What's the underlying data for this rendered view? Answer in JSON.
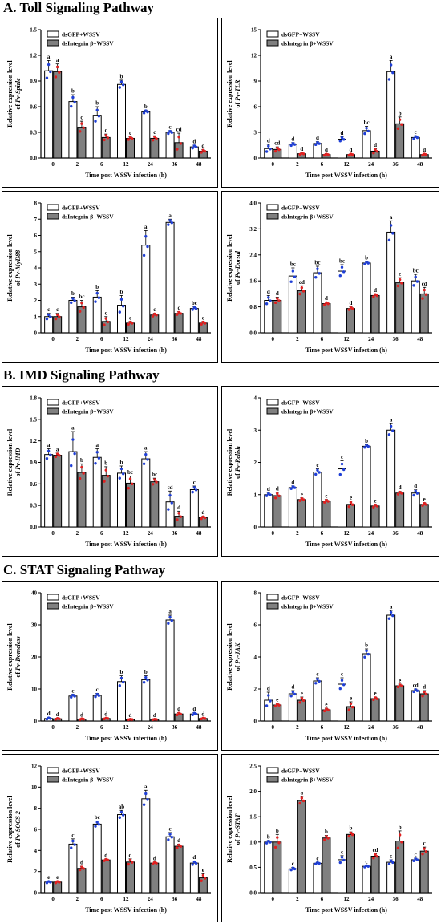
{
  "sections": [
    {
      "title": "A. Toll Signaling Pathway"
    },
    {
      "title": "B. IMD Signaling Pathway"
    },
    {
      "title": "C. STAT Signaling Pathway"
    }
  ],
  "colors": {
    "gfp_bar": "#ffffff",
    "integrin_bar": "#808080",
    "gfp_dot": "#1f3fd6",
    "integrin_dot": "#e02020"
  },
  "chart_data": [
    {
      "type": "bar",
      "panel": "Spizle",
      "ylabel_top": "Relative expression level",
      "ylabel_bottom_prefix": "of ",
      "ylabel_gene": "Pv-Spizle",
      "xlabel": "Time post WSSV infection (h)",
      "categories": [
        "0",
        "2",
        "6",
        "12",
        "24",
        "36",
        "48"
      ],
      "ylim": [
        0,
        1.5
      ],
      "yticks": [
        "0.0",
        "0.3",
        "0.6",
        "0.9",
        "1.2",
        "1.5"
      ],
      "legend_position": "top-left",
      "series": [
        {
          "name": "dsGFP+WSSV",
          "values": [
            1.02,
            0.66,
            0.5,
            0.86,
            0.54,
            0.3,
            0.13
          ],
          "errors": [
            0.12,
            0.08,
            0.1,
            0.05,
            0.02,
            0.02,
            0.02
          ],
          "letters": [
            "a",
            "b",
            "b",
            "b",
            "b",
            "c",
            "d"
          ]
        },
        {
          "name": "dsIntegrin β+WSSV",
          "values": [
            1.01,
            0.36,
            0.24,
            0.23,
            0.23,
            0.18,
            0.08
          ],
          "errors": [
            0.09,
            0.07,
            0.04,
            0.02,
            0.03,
            0.11,
            0.02
          ],
          "letters": [
            "a",
            "c",
            "c",
            "c",
            "c",
            "cd",
            "d"
          ]
        }
      ]
    },
    {
      "type": "bar",
      "panel": "TLR",
      "ylabel_top": "Relative expression level",
      "ylabel_bottom_prefix": "of ",
      "ylabel_gene": "Pv-TLR",
      "xlabel": "Time post WSSV infection (h)",
      "categories": [
        "0",
        "2",
        "6",
        "12",
        "24",
        "36",
        "48"
      ],
      "ylim": [
        0,
        15
      ],
      "yticks": [
        "0",
        "3",
        "6",
        "9",
        "12",
        "15"
      ],
      "legend_position": "top-left",
      "series": [
        {
          "name": "dsGFP+WSSV",
          "values": [
            1.1,
            1.6,
            1.7,
            2.2,
            3.2,
            10.1,
            2.4
          ],
          "errors": [
            0.5,
            0.2,
            0.2,
            0.3,
            0.5,
            1.3,
            0.2
          ],
          "letters": [
            "d",
            "d",
            "d",
            "d",
            "bc",
            "a",
            "c"
          ]
        },
        {
          "name": "dsIntegrin β+WSSV",
          "values": [
            1.0,
            0.5,
            0.4,
            0.4,
            0.8,
            4.0,
            0.4
          ],
          "errors": [
            0.3,
            0.1,
            0.1,
            0.1,
            0.3,
            0.8,
            0.1
          ],
          "letters": [
            "cd",
            "d",
            "d",
            "d",
            "d",
            "b",
            "d"
          ]
        }
      ]
    },
    {
      "type": "bar",
      "panel": "MyD88",
      "ylabel_top": "Relative expression level",
      "ylabel_bottom_prefix": "of ",
      "ylabel_gene": "Pv-MyD88",
      "xlabel": "Time post WSSV infection (h)",
      "categories": [
        "0",
        "2",
        "6",
        "12",
        "24",
        "36",
        "48"
      ],
      "ylim": [
        0,
        8
      ],
      "yticks": [
        "0",
        "1",
        "2",
        "3",
        "4",
        "5",
        "6",
        "7",
        "8"
      ],
      "legend_position": "top-left",
      "series": [
        {
          "name": "dsGFP+WSSV",
          "values": [
            1.0,
            2.0,
            2.2,
            1.7,
            5.4,
            6.8,
            1.5
          ],
          "errors": [
            0.2,
            0.2,
            0.4,
            0.6,
            0.9,
            0.2,
            0.1
          ],
          "letters": [
            "c",
            "b",
            "b",
            "b",
            "a",
            "a",
            "bc"
          ]
        },
        {
          "name": "dsIntegrin β+WSSV",
          "values": [
            1.0,
            1.6,
            0.7,
            0.6,
            1.1,
            1.2,
            0.6
          ],
          "errors": [
            0.2,
            0.4,
            0.3,
            0.1,
            0.1,
            0.1,
            0.1
          ],
          "letters": [
            "c",
            "bc",
            "c",
            "c",
            "c",
            "c",
            "c"
          ]
        }
      ]
    },
    {
      "type": "bar",
      "panel": "Dorsal",
      "ylabel_top": "Relative expression level",
      "ylabel_bottom_prefix": "of ",
      "ylabel_gene": "Pv-Dorsal",
      "xlabel": "Time post WSSV infection (h)",
      "categories": [
        "0",
        "2",
        "6",
        "12",
        "24",
        "36",
        "48"
      ],
      "ylim": [
        0,
        4.0
      ],
      "yticks": [
        "0.0",
        "0.8",
        "1.6",
        "2.4",
        "3.2",
        "4.0"
      ],
      "legend_position": "top-left",
      "series": [
        {
          "name": "dsGFP+WSSV",
          "values": [
            1.0,
            1.75,
            1.85,
            1.9,
            2.15,
            3.1,
            1.6
          ],
          "errors": [
            0.15,
            0.25,
            0.2,
            0.2,
            0.05,
            0.35,
            0.2
          ],
          "letters": [
            "d",
            "bc",
            "bc",
            "bc",
            "b",
            "a",
            "bc"
          ]
        },
        {
          "name": "dsIntegrin β+WSSV",
          "values": [
            1.0,
            1.3,
            0.9,
            0.75,
            1.15,
            1.55,
            1.2
          ],
          "errors": [
            0.1,
            0.15,
            0.05,
            0.05,
            0.05,
            0.15,
            0.2
          ],
          "letters": [
            "d",
            "cd",
            "d",
            "d",
            "d",
            "c",
            "cd"
          ]
        }
      ]
    },
    {
      "type": "bar",
      "panel": "IMD",
      "ylabel_top": "Relative expression level",
      "ylabel_bottom_prefix": "of ",
      "ylabel_gene": "Pv-IMD",
      "xlabel": "Time post WSSV infection (h)",
      "categories": [
        "0",
        "2",
        "6",
        "12",
        "24",
        "36",
        "48"
      ],
      "ylim": [
        0,
        1.8
      ],
      "yticks": [
        "0.0",
        "0.3",
        "0.6",
        "0.9",
        "1.2",
        "1.5",
        "1.8"
      ],
      "legend_position": "top-left",
      "series": [
        {
          "name": "dsGFP+WSSV",
          "values": [
            1.01,
            1.05,
            0.97,
            0.75,
            0.95,
            0.35,
            0.52
          ],
          "errors": [
            0.08,
            0.28,
            0.12,
            0.1,
            0.1,
            0.15,
            0.05
          ],
          "letters": [
            "a",
            "a",
            "a",
            "b",
            "a",
            "cd",
            "c"
          ]
        },
        {
          "name": "dsIntegrin β+WSSV",
          "values": [
            1.0,
            0.76,
            0.72,
            0.61,
            0.63,
            0.15,
            0.13
          ],
          "errors": [
            0.03,
            0.12,
            0.12,
            0.1,
            0.05,
            0.07,
            0.02
          ],
          "letters": [
            "a",
            "b",
            "b",
            "bc",
            "bc",
            "d",
            "d"
          ]
        }
      ]
    },
    {
      "type": "bar",
      "panel": "Relish",
      "ylabel_top": "Relative expression level",
      "ylabel_bottom_prefix": "of ",
      "ylabel_gene": "Pv-Relish",
      "xlabel": "Time post WSSV infection (h)",
      "categories": [
        "0",
        "2",
        "6",
        "12",
        "24",
        "36",
        "48"
      ],
      "ylim": [
        0,
        4
      ],
      "yticks": [
        "0",
        "1",
        "2",
        "3",
        "4"
      ],
      "legend_position": "top-left",
      "series": [
        {
          "name": "dsGFP+WSSV",
          "values": [
            1.0,
            1.22,
            1.7,
            1.8,
            2.5,
            3.0,
            1.05
          ],
          "errors": [
            0.05,
            0.05,
            0.1,
            0.25,
            0.05,
            0.2,
            0.1
          ],
          "letters": [
            "d",
            "d",
            "c",
            "c",
            "b",
            "a",
            "d"
          ]
        },
        {
          "name": "dsIntegrin β+WSSV",
          "values": [
            0.97,
            0.85,
            0.8,
            0.7,
            0.65,
            1.05,
            0.7
          ],
          "errors": [
            0.1,
            0.05,
            0.05,
            0.1,
            0.05,
            0.05,
            0.05
          ],
          "letters": [
            "d",
            "e",
            "e",
            "e",
            "e",
            "d",
            "e"
          ]
        }
      ]
    },
    {
      "type": "bar",
      "panel": "Domeless",
      "ylabel_top": "Relative expression level",
      "ylabel_bottom_prefix": "of ",
      "ylabel_gene": "Pv-Domeless",
      "xlabel": "Time post WSSV infection (h)",
      "categories": [
        "0",
        "2",
        "6",
        "12",
        "24",
        "36",
        "48"
      ],
      "ylim": [
        0,
        40
      ],
      "yticks": [
        "0",
        "10",
        "20",
        "30",
        "40"
      ],
      "legend_position": "top-left",
      "series": [
        {
          "name": "dsGFP+WSSV",
          "values": [
            0.8,
            7.8,
            8.0,
            12.3,
            12.9,
            31.5,
            2.2
          ],
          "errors": [
            0.3,
            0.5,
            0.6,
            1.8,
            1.2,
            1.5,
            0.4
          ],
          "letters": [
            "d",
            "c",
            "c",
            "b",
            "b",
            "a",
            "d"
          ]
        },
        {
          "name": "dsIntegrin β+WSSV",
          "values": [
            0.7,
            0.6,
            0.8,
            0.5,
            0.5,
            2.2,
            0.8
          ],
          "errors": [
            0.2,
            0.2,
            0.2,
            0.1,
            0.1,
            0.4,
            0.2
          ],
          "letters": [
            "d",
            "d",
            "d",
            "d",
            "d",
            "d",
            "d"
          ]
        }
      ]
    },
    {
      "type": "bar",
      "panel": "JAK",
      "ylabel_top": "Relative expression level",
      "ylabel_bottom_prefix": "of ",
      "ylabel_gene": "Pv-JAK",
      "xlabel": "Time post WSSV infection (h)",
      "categories": [
        "0",
        "2",
        "6",
        "12",
        "24",
        "36",
        "48"
      ],
      "ylim": [
        0,
        8
      ],
      "yticks": [
        "0",
        "2",
        "4",
        "6",
        "8"
      ],
      "legend_position": "top-left",
      "series": [
        {
          "name": "dsGFP+WSSV",
          "values": [
            1.3,
            1.7,
            2.5,
            2.3,
            4.2,
            6.6,
            1.9
          ],
          "errors": [
            0.5,
            0.2,
            0.2,
            0.4,
            0.3,
            0.3,
            0.1
          ],
          "letters": [
            "d",
            "d",
            "c",
            "c",
            "b",
            "a",
            "cd"
          ]
        },
        {
          "name": "dsIntegrin β+WSSV",
          "values": [
            1.0,
            1.3,
            0.7,
            0.9,
            1.4,
            2.2,
            1.7
          ],
          "errors": [
            0.1,
            0.2,
            0.1,
            0.3,
            0.1,
            0.1,
            0.2
          ],
          "letters": [
            "e",
            "e",
            "e",
            "e",
            "e",
            "e",
            "d"
          ]
        }
      ]
    },
    {
      "type": "bar",
      "panel": "SOCS2",
      "ylabel_top": "Relative expression level",
      "ylabel_bottom_prefix": "of ",
      "ylabel_gene": "Pv-SOCS 2",
      "xlabel": "Time post WSSV infection (h)",
      "categories": [
        "0",
        "2",
        "6",
        "12",
        "24",
        "36",
        "48"
      ],
      "ylim": [
        0,
        12
      ],
      "yticks": [
        "0",
        "2",
        "4",
        "6",
        "8",
        "10",
        "12"
      ],
      "legend_position": "top-left",
      "series": [
        {
          "name": "dsGFP+WSSV",
          "values": [
            1.0,
            4.6,
            6.5,
            7.4,
            8.9,
            5.3,
            2.8
          ],
          "errors": [
            0.1,
            0.5,
            0.3,
            0.4,
            0.8,
            0.4,
            0.2
          ],
          "letters": [
            "e",
            "c",
            "bc",
            "ab",
            "a",
            "c",
            "d"
          ]
        },
        {
          "name": "dsIntegrin β+WSSV",
          "values": [
            1.0,
            2.3,
            3.1,
            2.9,
            2.8,
            4.4,
            1.4
          ],
          "errors": [
            0.1,
            0.2,
            0.1,
            0.3,
            0.1,
            0.2,
            0.4
          ],
          "letters": [
            "e",
            "d",
            "d",
            "d",
            "d",
            "d",
            "e"
          ]
        }
      ]
    },
    {
      "type": "bar",
      "panel": "STAT",
      "ylabel_top": "Relative expression level",
      "ylabel_bottom_prefix": "of ",
      "ylabel_gene": "Pv-STAT",
      "xlabel": "Time post WSSV infection (h)",
      "categories": [
        "0",
        "2",
        "6",
        "12",
        "24",
        "36",
        "48"
      ],
      "ylim": [
        0,
        2.5
      ],
      "yticks": [
        "0.0",
        "0.5",
        "1.0",
        "1.5",
        "2.0",
        "2.5"
      ],
      "legend_position": "top-left",
      "series": [
        {
          "name": "dsGFP+WSSV",
          "values": [
            1.0,
            0.47,
            0.58,
            0.65,
            0.52,
            0.6,
            0.65
          ],
          "errors": [
            0.03,
            0.03,
            0.02,
            0.08,
            0.02,
            0.05,
            0.03
          ],
          "letters": [
            "b",
            "c",
            "c",
            "c",
            "c",
            "c",
            "c"
          ]
        },
        {
          "name": "dsIntegrin β+WSSV",
          "values": [
            1.0,
            1.82,
            1.08,
            1.15,
            0.72,
            1.02,
            0.82
          ],
          "errors": [
            0.15,
            0.08,
            0.05,
            0.05,
            0.05,
            0.2,
            0.08
          ],
          "letters": [
            "b",
            "a",
            "b",
            "b",
            "cd",
            "b",
            "c"
          ]
        }
      ]
    }
  ]
}
